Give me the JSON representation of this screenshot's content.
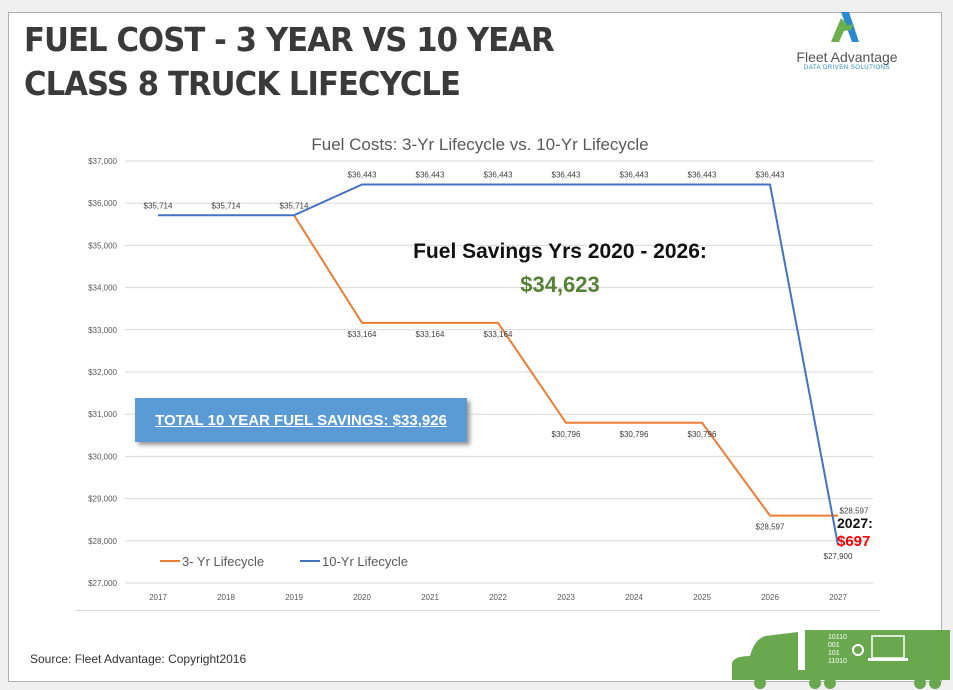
{
  "slide": {
    "title_line1": "FUEL COST - 3 YEAR VS 10 YEAR",
    "title_line2": "CLASS 8 TRUCK LIFECYCLE",
    "source": "Source: Fleet Advantage: Copyright2016"
  },
  "logo": {
    "name": "Fleet Advantage",
    "tagline": "DATA DRIVEN SOLUTIONS"
  },
  "annotations": {
    "total_savings": "TOTAL 10 YEAR FUEL SAVINGS: $33,926",
    "savings_title": "Fuel Savings Yrs 2020 - 2026:",
    "savings_value": "$34,623",
    "year_2027_label": "2027:",
    "year_2027_value": "$697"
  },
  "truck_graphic": {
    "binary": [
      "10110",
      "001",
      "101",
      "11010"
    ]
  },
  "chart_data": {
    "type": "line",
    "title": "Fuel Costs: 3-Yr Lifecycle vs. 10-Yr Lifecycle",
    "categories": [
      "2017",
      "2018",
      "2019",
      "2020",
      "2021",
      "2022",
      "2023",
      "2024",
      "2025",
      "2026",
      "2027"
    ],
    "ylim": [
      27000,
      37000
    ],
    "yticks": [
      "$27,000",
      "$28,000",
      "$29,000",
      "$30,000",
      "$31,000",
      "$32,000",
      "$33,000",
      "$34,000",
      "$35,000",
      "$36,000",
      "$37,000"
    ],
    "grid": true,
    "legend": "bottom-left",
    "series": [
      {
        "name": "3- Yr Lifecycle",
        "color": "#ed7d31",
        "values": [
          null,
          null,
          35714,
          33164,
          33164,
          33164,
          30796,
          30796,
          30796,
          28597,
          28597
        ],
        "labels": [
          null,
          null,
          null,
          "$33,164",
          "$33,164",
          "$33,164",
          "$30,796",
          "$30,796",
          "$30,796",
          "$28,597",
          "$28,597"
        ]
      },
      {
        "name": "10-Yr Lifecycle",
        "color": "#4472c4",
        "values": [
          35714,
          35714,
          35714,
          36443,
          36443,
          36443,
          36443,
          36443,
          36443,
          36443,
          27900
        ],
        "labels": [
          "$35,714",
          "$35,714",
          "$35,714",
          "$36,443",
          "$36,443",
          "$36,443",
          "$36,443",
          "$36,443",
          "$36,443",
          "$36,443",
          "$27,900"
        ]
      }
    ]
  }
}
